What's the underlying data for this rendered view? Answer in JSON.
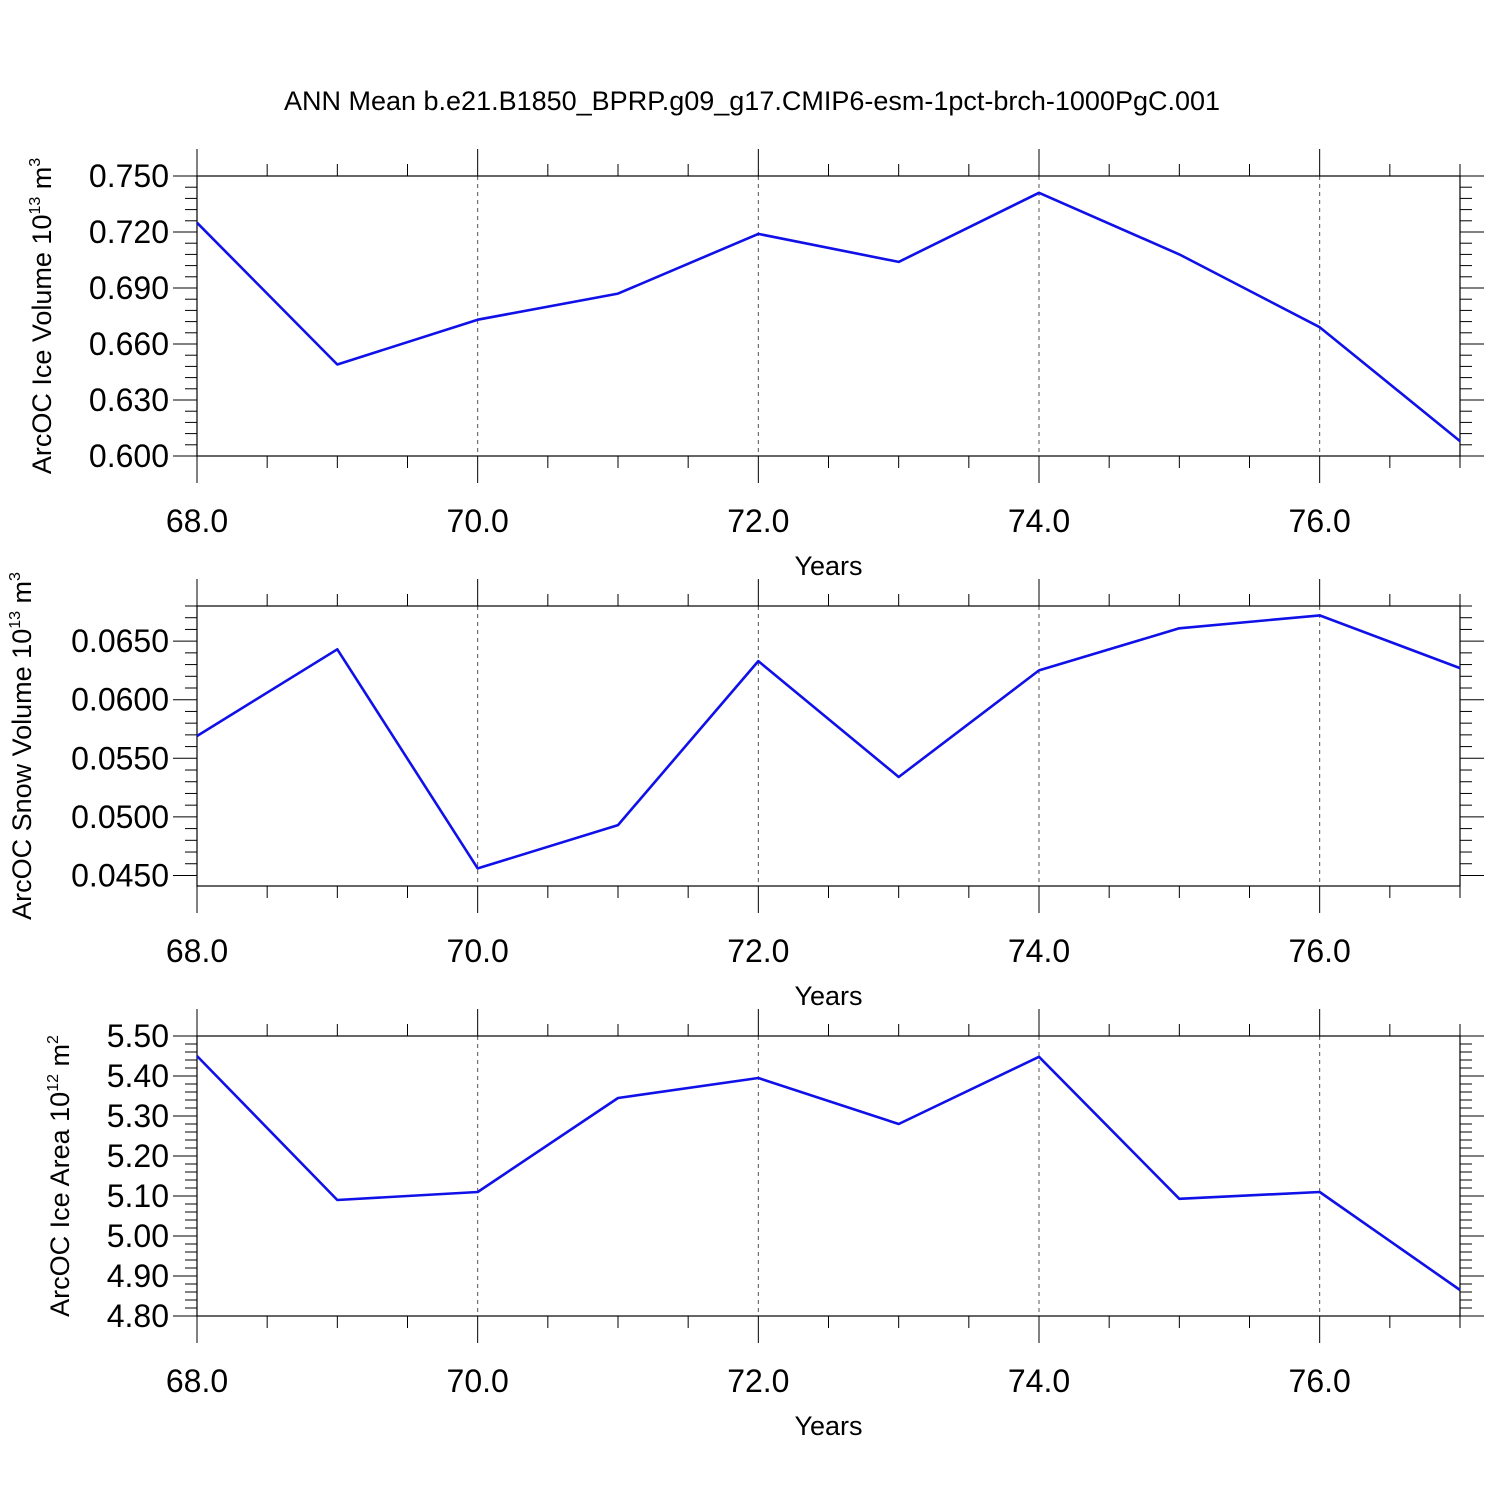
{
  "title": "ANN Mean b.e21.B1850_BPRP.g09_g17.CMIP6-esm-1pct-brch-1000PgC.001",
  "chart_data": [
    {
      "type": "line",
      "ylabel": "ArcOC Ice Volume 10",
      "ylabel_exp": "13",
      "ylabel_unit": " m",
      "ylabel_unit_exp": "3",
      "xlabel": "Years",
      "xlim": [
        68,
        77
      ],
      "ylim": [
        0.6,
        0.75
      ],
      "yticks": [
        0.6,
        0.63,
        0.66,
        0.69,
        0.72,
        0.75
      ],
      "ytick_labels": [
        "0.600",
        "0.630",
        "0.660",
        "0.690",
        "0.720",
        "0.750"
      ],
      "xticks": [
        68,
        70,
        72,
        74,
        76
      ],
      "xtick_labels": [
        "68.0",
        "70.0",
        "72.0",
        "74.0",
        "76.0"
      ],
      "line_color": "#1010e8",
      "grid": "vertical dashed at major x ticks",
      "x": [
        68,
        69,
        70,
        71,
        72,
        73,
        74,
        75,
        76,
        77
      ],
      "series": [
        {
          "values": [
            0.725,
            0.649,
            0.673,
            0.687,
            0.719,
            0.704,
            0.741,
            0.708,
            0.669,
            0.608
          ]
        }
      ]
    },
    {
      "type": "line",
      "ylabel": "ArcOC Snow Volume 10",
      "ylabel_exp": "13",
      "ylabel_unit": " m",
      "ylabel_unit_exp": "3",
      "xlabel": "Years",
      "xlim": [
        68,
        77
      ],
      "ylim": [
        0.0441,
        0.068
      ],
      "yticks": [
        0.045,
        0.05,
        0.055,
        0.06,
        0.065
      ],
      "ytick_labels": [
        "0.0450",
        "0.0500",
        "0.0550",
        "0.0600",
        "0.0650"
      ],
      "xticks": [
        68,
        70,
        72,
        74,
        76
      ],
      "xtick_labels": [
        "68.0",
        "70.0",
        "72.0",
        "74.0",
        "76.0"
      ],
      "line_color": "#1010e8",
      "grid": "vertical dashed at major x ticks",
      "x": [
        68,
        69,
        70,
        71,
        72,
        73,
        74,
        75,
        76,
        77
      ],
      "series": [
        {
          "values": [
            0.0569,
            0.0643,
            0.0456,
            0.0493,
            0.0633,
            0.0534,
            0.0625,
            0.0661,
            0.0672,
            0.0627
          ]
        }
      ]
    },
    {
      "type": "line",
      "ylabel": "ArcOC Ice Area 10",
      "ylabel_exp": "12",
      "ylabel_unit": " m",
      "ylabel_unit_exp": "2",
      "xlabel": "Years",
      "xlim": [
        68,
        77
      ],
      "ylim": [
        4.8,
        5.5
      ],
      "yticks": [
        4.8,
        4.9,
        5.0,
        5.1,
        5.2,
        5.3,
        5.4,
        5.5
      ],
      "ytick_labels": [
        "4.80",
        "4.90",
        "5.00",
        "5.10",
        "5.20",
        "5.30",
        "5.40",
        "5.50"
      ],
      "xticks": [
        68,
        70,
        72,
        74,
        76
      ],
      "xtick_labels": [
        "68.0",
        "70.0",
        "72.0",
        "74.0",
        "76.0"
      ],
      "line_color": "#1010e8",
      "grid": "vertical dashed at major x ticks",
      "x": [
        68,
        69,
        70,
        71,
        72,
        73,
        74,
        75,
        76,
        77
      ],
      "series": [
        {
          "values": [
            5.45,
            5.09,
            5.11,
            5.345,
            5.395,
            5.28,
            5.448,
            5.093,
            5.11,
            4.865
          ]
        }
      ]
    }
  ]
}
